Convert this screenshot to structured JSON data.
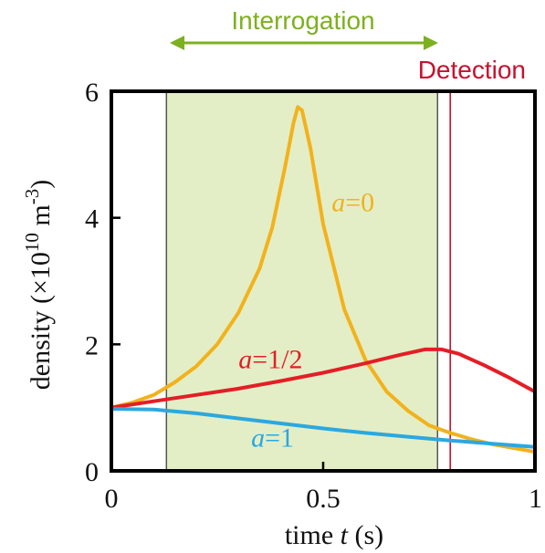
{
  "chart_data": {
    "type": "line",
    "xlabel": {
      "prefix": "time ",
      "italic": "t",
      "suffix": " (s)"
    },
    "ylabel": {
      "prefix": "density (×10",
      "sup1": "10",
      "mid": " m",
      "sup2": "-3",
      "suffix": ")"
    },
    "xlim": [
      0,
      1
    ],
    "ylim": [
      0,
      6
    ],
    "x_ticks": [
      {
        "value": 0,
        "label": "0"
      },
      {
        "value": 0.5,
        "label": "0.5"
      },
      {
        "value": 1,
        "label": "1"
      }
    ],
    "y_ticks": [
      {
        "value": 0,
        "label": "0"
      },
      {
        "value": 2,
        "label": "2"
      },
      {
        "value": 4,
        "label": "4"
      },
      {
        "value": 6,
        "label": "6"
      }
    ],
    "annotations": {
      "interrogation": {
        "label": "Interrogation",
        "x_start": 0.13,
        "x_end": 0.77,
        "color": "#7db01f",
        "fill": "#e3eec6"
      },
      "detection": {
        "label": "Detection",
        "x": 0.8,
        "color": "#c8102e"
      }
    },
    "series": [
      {
        "italic": "a",
        "suffix": "=0",
        "color": "#f2b21c",
        "label_at": [
          0.52,
          4.1
        ],
        "points": [
          [
            0,
            1.0
          ],
          [
            0.05,
            1.08
          ],
          [
            0.1,
            1.2
          ],
          [
            0.15,
            1.4
          ],
          [
            0.2,
            1.65
          ],
          [
            0.25,
            2.0
          ],
          [
            0.3,
            2.5
          ],
          [
            0.35,
            3.2
          ],
          [
            0.38,
            3.85
          ],
          [
            0.41,
            4.8
          ],
          [
            0.43,
            5.5
          ],
          [
            0.44,
            5.75
          ],
          [
            0.45,
            5.7
          ],
          [
            0.47,
            5.1
          ],
          [
            0.5,
            3.9
          ],
          [
            0.55,
            2.55
          ],
          [
            0.6,
            1.75
          ],
          [
            0.65,
            1.25
          ],
          [
            0.7,
            0.95
          ],
          [
            0.75,
            0.72
          ],
          [
            0.8,
            0.6
          ],
          [
            0.85,
            0.5
          ],
          [
            0.9,
            0.42
          ],
          [
            0.95,
            0.36
          ],
          [
            1.0,
            0.3
          ]
        ]
      },
      {
        "italic": "a",
        "suffix": "=1/2",
        "color": "#e41e26",
        "label_at": [
          0.3,
          1.62
        ],
        "points": [
          [
            0,
            1.0
          ],
          [
            0.1,
            1.1
          ],
          [
            0.2,
            1.2
          ],
          [
            0.3,
            1.3
          ],
          [
            0.4,
            1.42
          ],
          [
            0.5,
            1.55
          ],
          [
            0.6,
            1.7
          ],
          [
            0.68,
            1.83
          ],
          [
            0.74,
            1.92
          ],
          [
            0.78,
            1.92
          ],
          [
            0.82,
            1.85
          ],
          [
            0.88,
            1.67
          ],
          [
            0.94,
            1.47
          ],
          [
            1.0,
            1.25
          ]
        ]
      },
      {
        "italic": "a",
        "suffix": "=1",
        "color": "#2ba8e0",
        "label_at": [
          0.33,
          0.38
        ],
        "points": [
          [
            0,
            0.98
          ],
          [
            0.1,
            0.97
          ],
          [
            0.2,
            0.91
          ],
          [
            0.3,
            0.83
          ],
          [
            0.4,
            0.75
          ],
          [
            0.5,
            0.67
          ],
          [
            0.6,
            0.6
          ],
          [
            0.7,
            0.54
          ],
          [
            0.8,
            0.48
          ],
          [
            0.9,
            0.43
          ],
          [
            1.0,
            0.38
          ]
        ]
      }
    ]
  }
}
